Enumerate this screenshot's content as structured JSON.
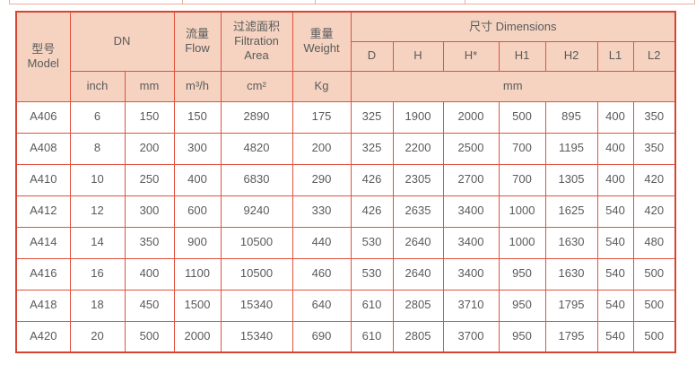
{
  "colors": {
    "header_bg": "#f5d3c0",
    "border": "#e1523f",
    "outer_border": "#d64531",
    "text": "#595a5c",
    "strip_border": "#eeaca0",
    "page_bg": "#ffffff"
  },
  "table": {
    "header": {
      "model_zh": "型号",
      "model_en": "Model",
      "dn": "DN",
      "flow_zh": "流量",
      "flow_en": "Flow",
      "area_lines": [
        "过滤面积",
        "Filtration",
        "Area"
      ],
      "weight_zh": "重量",
      "weight_en": "Weight",
      "dimensions": "尺寸 Dimensions",
      "dim_cols": [
        "D",
        "H",
        "H*",
        "H1",
        "H2",
        "L1",
        "L2"
      ],
      "unit_inch": "inch",
      "unit_mm": "mm",
      "unit_flow": "m³/h",
      "unit_area": "cm²",
      "unit_weight": "Kg",
      "unit_dim": "mm"
    },
    "column_keys": [
      "model",
      "dn-inch",
      "dn-mm",
      "flow",
      "filtration-area",
      "weight",
      "d",
      "h",
      "h-star",
      "h1",
      "h2",
      "l1",
      "l2"
    ],
    "rows": [
      [
        "A406",
        "6",
        "150",
        "150",
        "2890",
        "175",
        "325",
        "1900",
        "2000",
        "500",
        "895",
        "400",
        "350"
      ],
      [
        "A408",
        "8",
        "200",
        "300",
        "4820",
        "200",
        "325",
        "2200",
        "2500",
        "700",
        "1195",
        "400",
        "350"
      ],
      [
        "A410",
        "10",
        "250",
        "400",
        "6830",
        "290",
        "426",
        "2305",
        "2700",
        "700",
        "1305",
        "400",
        "420"
      ],
      [
        "A412",
        "12",
        "300",
        "600",
        "9240",
        "330",
        "426",
        "2635",
        "3400",
        "1000",
        "1625",
        "540",
        "420"
      ],
      [
        "A414",
        "14",
        "350",
        "900",
        "10500",
        "440",
        "530",
        "2640",
        "3400",
        "1000",
        "1630",
        "540",
        "480"
      ],
      [
        "A416",
        "16",
        "400",
        "1100",
        "10500",
        "460",
        "530",
        "2640",
        "3400",
        "950",
        "1630",
        "540",
        "500"
      ],
      [
        "A418",
        "18",
        "450",
        "1500",
        "15340",
        "640",
        "610",
        "2805",
        "3710",
        "950",
        "1795",
        "540",
        "500"
      ],
      [
        "A420",
        "20",
        "500",
        "2000",
        "15340",
        "690",
        "610",
        "2805",
        "3700",
        "950",
        "1795",
        "540",
        "500"
      ]
    ]
  }
}
